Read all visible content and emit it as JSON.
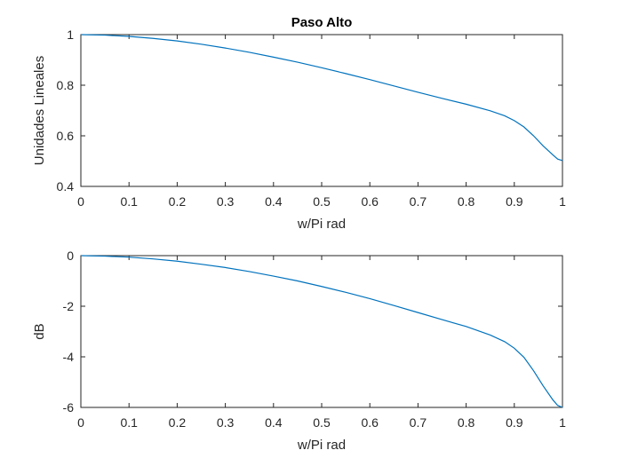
{
  "chart_data": [
    {
      "type": "line",
      "title": "Paso Alto",
      "xlabel": "w/Pi rad",
      "ylabel": "Unidades Lineales",
      "xlim": [
        0,
        1
      ],
      "ylim": [
        0.4,
        1
      ],
      "xticks": [
        "0",
        "0.1",
        "0.2",
        "0.3",
        "0.4",
        "0.5",
        "0.6",
        "0.7",
        "0.8",
        "0.9",
        "1"
      ],
      "yticks": [
        "0.4",
        "0.6",
        "0.8",
        "1"
      ],
      "grid": false,
      "color": "#0072bd",
      "series": [
        {
          "x": [
            0,
            0.05,
            0.1,
            0.15,
            0.2,
            0.25,
            0.3,
            0.35,
            0.4,
            0.45,
            0.5,
            0.55,
            0.6,
            0.65,
            0.7,
            0.75,
            0.8,
            0.85,
            0.88,
            0.9,
            0.92,
            0.94,
            0.96,
            0.98,
            0.99,
            1.0
          ],
          "y": [
            1.0,
            0.998,
            0.993,
            0.985,
            0.975,
            0.962,
            0.947,
            0.93,
            0.911,
            0.891,
            0.869,
            0.846,
            0.822,
            0.797,
            0.772,
            0.748,
            0.725,
            0.699,
            0.679,
            0.66,
            0.635,
            0.6,
            0.56,
            0.525,
            0.508,
            0.502
          ]
        }
      ]
    },
    {
      "type": "line",
      "title": "",
      "xlabel": "w/Pi rad",
      "ylabel": "dB",
      "xlim": [
        0,
        1
      ],
      "ylim": [
        -6,
        0
      ],
      "xticks": [
        "0",
        "0.1",
        "0.2",
        "0.3",
        "0.4",
        "0.5",
        "0.6",
        "0.7",
        "0.8",
        "0.9",
        "1"
      ],
      "yticks": [
        "-6",
        "-4",
        "-2",
        "0"
      ],
      "grid": false,
      "color": "#0072bd",
      "series": [
        {
          "x": [
            0,
            0.05,
            0.1,
            0.15,
            0.2,
            0.25,
            0.3,
            0.35,
            0.4,
            0.45,
            0.5,
            0.55,
            0.6,
            0.65,
            0.7,
            0.75,
            0.8,
            0.85,
            0.88,
            0.9,
            0.92,
            0.94,
            0.96,
            0.98,
            0.99,
            1.0
          ],
          "y": [
            0.0,
            -0.02,
            -0.06,
            -0.13,
            -0.22,
            -0.34,
            -0.47,
            -0.63,
            -0.81,
            -1.0,
            -1.22,
            -1.45,
            -1.7,
            -1.97,
            -2.25,
            -2.53,
            -2.8,
            -3.14,
            -3.4,
            -3.66,
            -4.02,
            -4.55,
            -5.15,
            -5.7,
            -5.92,
            -6.0
          ]
        }
      ]
    }
  ]
}
